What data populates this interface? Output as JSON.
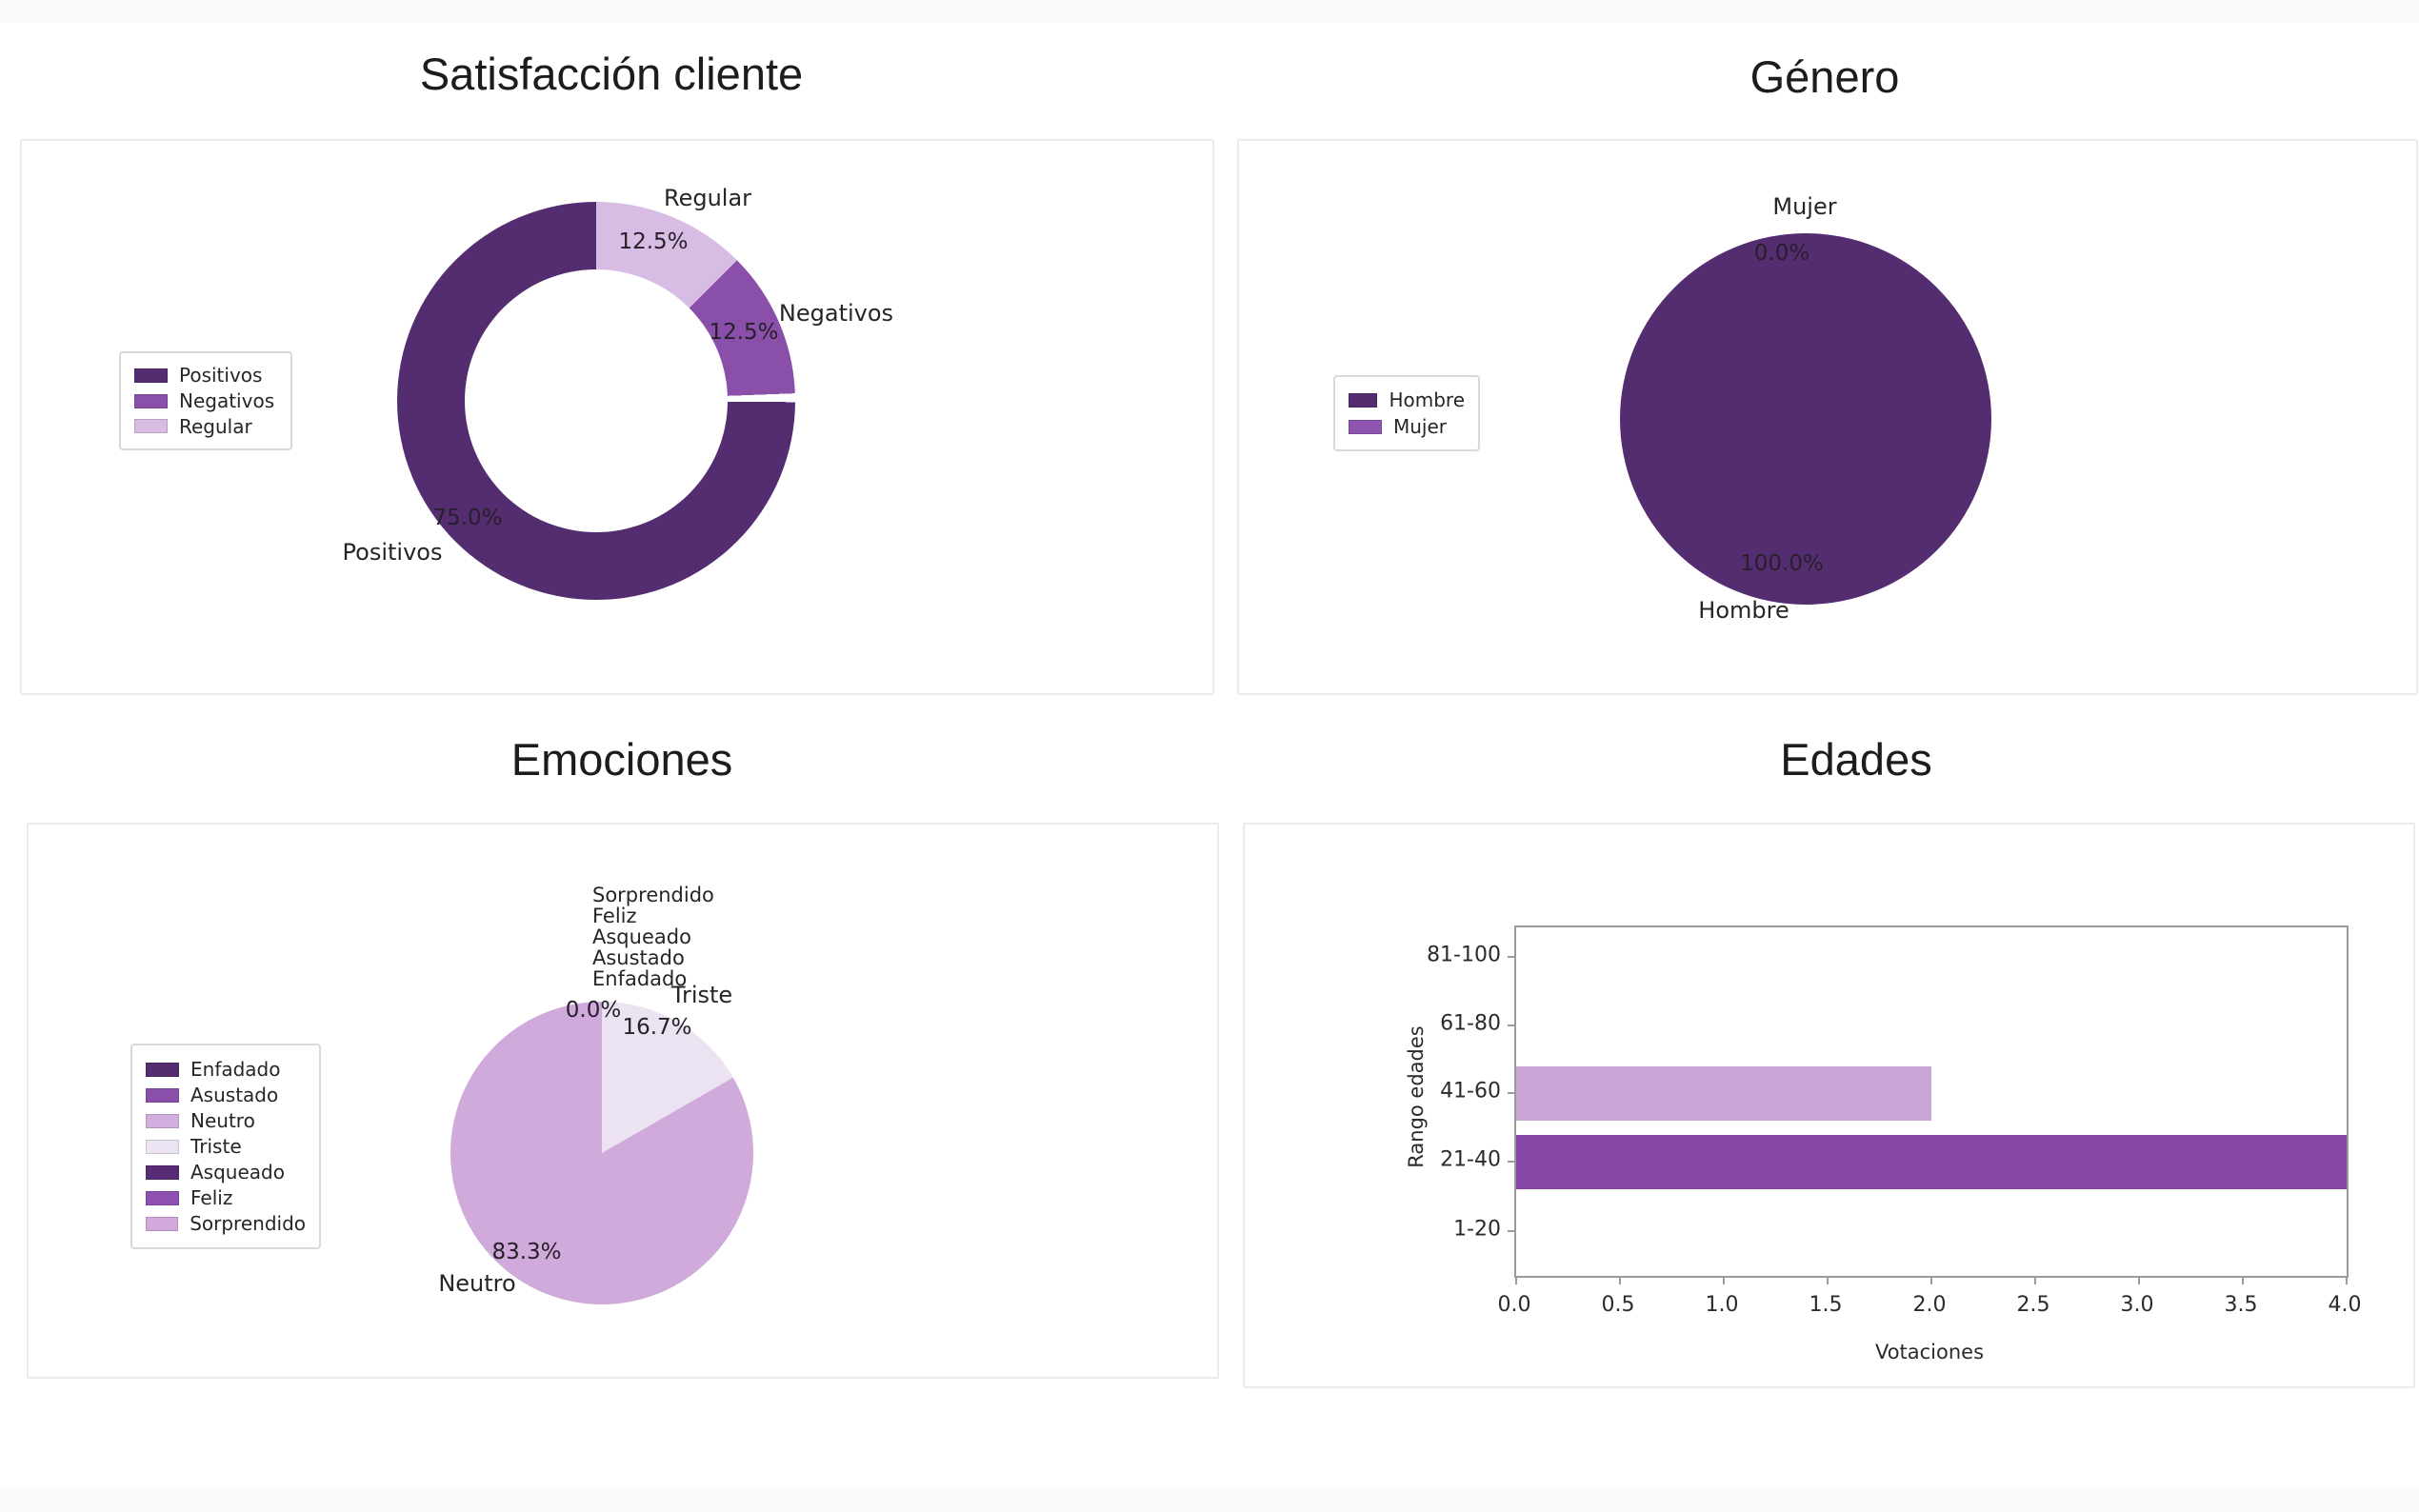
{
  "page": {
    "background": "#ffffff",
    "strip_color": "#fafafa"
  },
  "chart_data": [
    {
      "id": "satisfaccion",
      "type": "donut",
      "title": "Satisfacción cliente",
      "categories": [
        "Positivos",
        "Negativos",
        "Regular"
      ],
      "values": [
        75.0,
        12.5,
        12.5
      ],
      "pct_labels": [
        "75.0%",
        "12.5%",
        "12.5%"
      ],
      "colors": [
        "#542c70",
        "#8a4fa8",
        "#d7bce4"
      ],
      "legend": {
        "position": "left",
        "entries": [
          {
            "label": "Positivos",
            "color": "#542c70"
          },
          {
            "label": "Negativos",
            "color": "#8a4fa8"
          },
          {
            "label": "Regular",
            "color": "#d7bce4"
          }
        ]
      },
      "labels": {
        "regular_name": "Regular",
        "regular_pct": "12.5%",
        "negativos_name": "Negativos",
        "negativos_pct": "12.5%",
        "positivos_pct": "75.0%",
        "positivos_name": "Positivos"
      },
      "render_slices": [
        {
          "name": "Regular",
          "color": "#d7bce4",
          "pct": 12.5
        },
        {
          "name": "Negativos",
          "color": "#8a4fa8",
          "pct": 11.9
        },
        {
          "name": "wedge-gap",
          "color": "#ffffff",
          "pct": 0.7
        },
        {
          "name": "Positivos",
          "color": "#542c70",
          "pct": 74.9
        }
      ]
    },
    {
      "id": "genero",
      "type": "pie",
      "title": "Género",
      "categories": [
        "Hombre",
        "Mujer"
      ],
      "values": [
        100.0,
        0.0
      ],
      "pct_labels": [
        "100.0%",
        "0.0%"
      ],
      "colors": [
        "#542c70",
        "#8f55b0"
      ],
      "legend": {
        "position": "left",
        "entries": [
          {
            "label": "Hombre",
            "color": "#542c70"
          },
          {
            "label": "Mujer",
            "color": "#8f55b0"
          }
        ]
      },
      "labels": {
        "mujer_name": "Mujer",
        "mujer_pct": "0.0%",
        "hombre_pct": "100.0%",
        "hombre_name": "Hombre"
      },
      "render_slices": [
        {
          "name": "Hombre",
          "color": "#542c70",
          "pct": 100
        }
      ]
    },
    {
      "id": "emociones",
      "type": "pie",
      "title": "Emociones",
      "categories": [
        "Enfadado",
        "Asustado",
        "Neutro",
        "Triste",
        "Asqueado",
        "Feliz",
        "Sorprendido"
      ],
      "values": [
        0.0,
        0.0,
        83.3,
        16.7,
        0.0,
        0.0,
        0.0
      ],
      "pct_labels": [
        "0.0%",
        "0.0%",
        "83.3%",
        "16.7%",
        "0.0%",
        "0.0%",
        "0.0%"
      ],
      "colors": [
        "#542c70",
        "#8a4fa8",
        "#d2aede",
        "#ece4f2",
        "#572b76",
        "#8d4fb0",
        "#d2a9dd"
      ],
      "legend": {
        "position": "left",
        "entries": [
          {
            "label": "Enfadado",
            "color": "#542c70"
          },
          {
            "label": "Asustado",
            "color": "#8a4fa8"
          },
          {
            "label": "Neutro",
            "color": "#d2aede"
          },
          {
            "label": "Triste",
            "color": "#ece4f2"
          },
          {
            "label": "Asqueado",
            "color": "#572b76"
          },
          {
            "label": "Feliz",
            "color": "#8d4fb0"
          },
          {
            "label": "Sorprendido",
            "color": "#d2a9dd"
          }
        ]
      },
      "labels": {
        "stack": [
          "Sorprendido",
          "Feliz",
          "Asqueado",
          "Asustado",
          "Enfadado"
        ],
        "triste_name": "Triste",
        "zero_pct": "0.0%",
        "triste_pct": "16.7%",
        "neutro_pct": "83.3%",
        "neutro_name": "Neutro"
      },
      "render_slices": [
        {
          "name": "Triste",
          "color": "#ebe2f2",
          "pct": 16.7
        },
        {
          "name": "Neutro",
          "color": "#cfaadb",
          "pct": 83.3
        }
      ]
    },
    {
      "id": "edades",
      "type": "bar",
      "orientation": "horizontal",
      "title": "Edades",
      "xlabel": "Votaciones",
      "ylabel": "Rango edades",
      "categories": [
        "1-20",
        "21-40",
        "41-60",
        "61-80",
        "81-100"
      ],
      "values": [
        0,
        4,
        2,
        0,
        0
      ],
      "bar_colors": [
        "",
        "#8448a4",
        "#c9a6d6",
        "",
        ""
      ],
      "xlim": [
        0.0,
        4.0
      ],
      "grid": false,
      "x_ticks": [
        "0.0",
        "0.5",
        "1.0",
        "1.5",
        "2.0",
        "2.5",
        "3.0",
        "3.5",
        "4.0"
      ],
      "y_ticks": [
        "81-100",
        "61-80",
        "41-60",
        "21-40",
        "1-20"
      ]
    }
  ]
}
